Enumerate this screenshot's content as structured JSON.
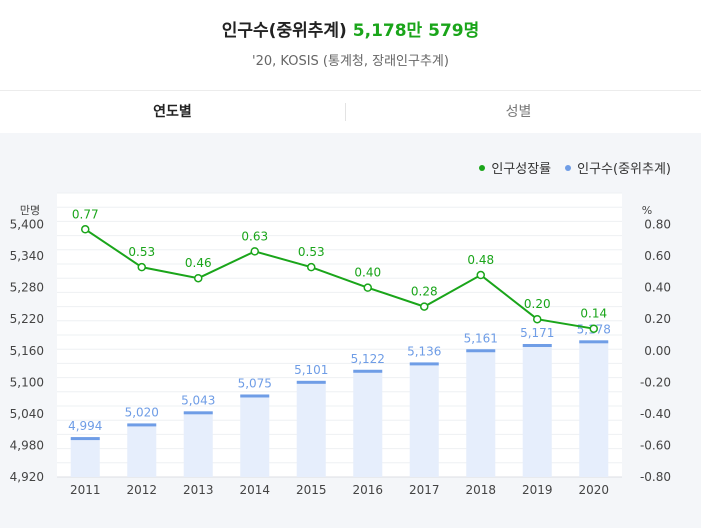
{
  "header": {
    "title": "인구수(중위추계)",
    "title_value": "5,178만 579명",
    "subtitle": "'20, KOSIS (통계청, 장래인구추계)"
  },
  "tabs": [
    {
      "label": "연도별",
      "active": true
    },
    {
      "label": "성별",
      "active": false
    }
  ],
  "legend": [
    {
      "label": "인구성장률",
      "color": "#1aa51a"
    },
    {
      "label": "인구수(중위추계)",
      "color": "#6f9de6"
    }
  ],
  "colors": {
    "line": "#1aa51a",
    "bar_fill": "#e6eefc",
    "bar_top": "#6f9de6",
    "accent": "#1aa51a"
  },
  "chart_data": {
    "type": "bar+line",
    "left_axis_unit": "만명",
    "right_axis_unit": "%",
    "categories": [
      "2011",
      "2012",
      "2013",
      "2014",
      "2015",
      "2016",
      "2017",
      "2018",
      "2019",
      "2020"
    ],
    "population": {
      "values": [
        4994,
        5020,
        5043,
        5075,
        5101,
        5122,
        5136,
        5161,
        5171,
        5178
      ],
      "labels": [
        "4,994",
        "5,020",
        "5,043",
        "5,075",
        "5,101",
        "5,122",
        "5,136",
        "5,161",
        "5,171",
        "5,178"
      ]
    },
    "growth_rate": {
      "values": [
        0.77,
        0.53,
        0.46,
        0.63,
        0.53,
        0.4,
        0.28,
        0.48,
        0.2,
        0.14
      ],
      "labels": [
        "0.77",
        "0.53",
        "0.46",
        "0.63",
        "0.53",
        "0.40",
        "0.28",
        "0.48",
        "0.20",
        "0.14"
      ]
    },
    "left_ticks": [
      "4,920",
      "4,980",
      "5,040",
      "5,100",
      "5,160",
      "5,220",
      "5,280",
      "5,340",
      "5,400"
    ],
    "left_range": [
      4920,
      5460
    ],
    "right_ticks": [
      "-0.80",
      "-0.60",
      "-0.40",
      "-0.20",
      "0.00",
      "0.20",
      "0.40",
      "0.60",
      "0.80"
    ],
    "right_range": [
      -0.8,
      1.0
    ]
  }
}
